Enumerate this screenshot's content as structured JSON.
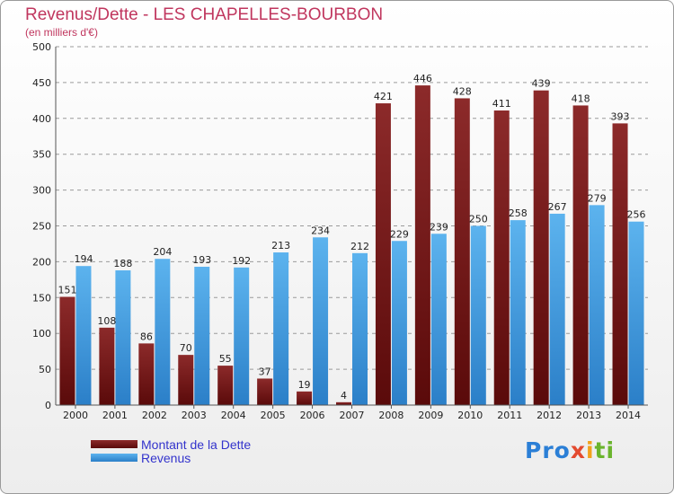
{
  "chart_data": {
    "type": "bar",
    "title": "Revenus/Dette - LES CHAPELLES-BOURBON",
    "subtitle": "(en milliers d'€)",
    "categories": [
      "2000",
      "2001",
      "2002",
      "2003",
      "2004",
      "2005",
      "2006",
      "2007",
      "2008",
      "2009",
      "2010",
      "2011",
      "2012",
      "2013",
      "2014"
    ],
    "series": [
      {
        "name": "Montant de la Dette",
        "color": "#7a1c1c",
        "values": [
          151,
          108,
          86,
          70,
          55,
          37,
          19,
          4,
          421,
          446,
          428,
          411,
          439,
          418,
          393
        ]
      },
      {
        "name": "Revenus",
        "color": "#3d9ee0",
        "values": [
          194,
          188,
          204,
          193,
          192,
          213,
          234,
          212,
          229,
          239,
          250,
          258,
          267,
          279,
          256
        ]
      }
    ],
    "ylim": [
      0,
      500
    ],
    "yticks": [
      0,
      50,
      100,
      150,
      200,
      250,
      300,
      350,
      400,
      450,
      500
    ],
    "grid": true,
    "legend_position": "bottom-left"
  },
  "logo": {
    "text": "Proxiti",
    "parts": [
      "Pro",
      "x",
      "i",
      "ti"
    ]
  },
  "colors": {
    "title": "#c0365e",
    "legend_text": "#3333cc",
    "grid": "#9a9a9a"
  }
}
